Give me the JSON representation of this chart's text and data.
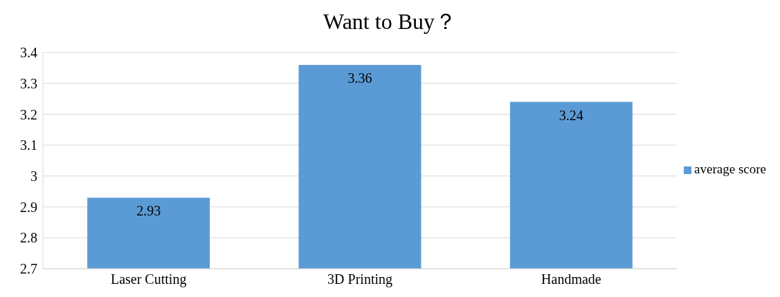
{
  "chart_data": {
    "type": "bar",
    "title": "Want to Buy？",
    "categories": [
      "Laser Cutting",
      "3D Printing",
      "Handmade"
    ],
    "series": [
      {
        "name": "average score",
        "color": "#5b9bd5",
        "values": [
          2.93,
          3.36,
          3.24
        ]
      }
    ],
    "ylim": [
      2.7,
      3.4
    ],
    "yticks": [
      2.7,
      2.8,
      2.9,
      3,
      3.1,
      3.2,
      3.3,
      3.4
    ],
    "grid": "y",
    "legend": "right",
    "data_labels": true
  }
}
